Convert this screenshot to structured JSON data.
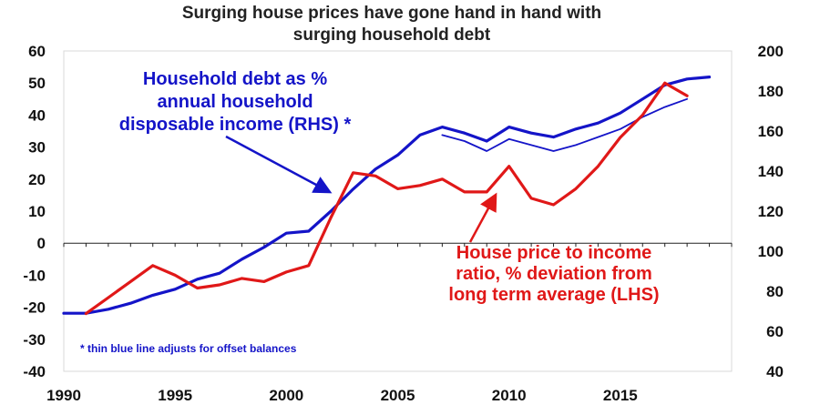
{
  "chart_data": {
    "type": "line",
    "title_lines": [
      "Surging house prices have gone hand in hand with",
      "surging household debt"
    ],
    "x_ticks": [
      "1990",
      "1995",
      "2000",
      "2005",
      "2010",
      "2015"
    ],
    "x_tick_values": [
      1990,
      1995,
      2000,
      2005,
      2010,
      2015
    ],
    "xlim": [
      1990,
      2020
    ],
    "left_axis": {
      "ticks": [
        "60",
        "50",
        "40",
        "30",
        "20",
        "10",
        "0",
        "-10",
        "-20",
        "-30",
        "-40"
      ],
      "ylim": [
        -40,
        60
      ]
    },
    "right_axis": {
      "ticks": [
        "200",
        "180",
        "160",
        "140",
        "120",
        "100",
        "80",
        "60",
        "40"
      ],
      "ylim": [
        40,
        200
      ]
    },
    "grid": false,
    "zero_line": 0,
    "series": [
      {
        "name": "Household debt as % annual household disposable income (RHS) *",
        "axis": "right",
        "color": "#1414c8",
        "weight": "thick",
        "x": [
          1990,
          1991,
          1992,
          1993,
          1994,
          1995,
          1996,
          1997,
          1998,
          1999,
          2000,
          2001,
          2002,
          2003,
          2004,
          2005,
          2006,
          2007,
          2008,
          2009,
          2010,
          2011,
          2012,
          2013,
          2014,
          2015,
          2016,
          2017,
          2018,
          2019
        ],
        "values": [
          69,
          69,
          71,
          74,
          78,
          81,
          86,
          89,
          96,
          102,
          109,
          110,
          120,
          131,
          141,
          148,
          158,
          162,
          159,
          155,
          162,
          159,
          157,
          161,
          164,
          169,
          176,
          183,
          186,
          187
        ]
      },
      {
        "name": "thin blue line (offset-adjusted debt, RHS)",
        "axis": "right",
        "color": "#1414c8",
        "weight": "thin",
        "x": [
          2007,
          2008,
          2009,
          2010,
          2011,
          2012,
          2013,
          2014,
          2015,
          2016,
          2017,
          2018
        ],
        "values": [
          158,
          155,
          150,
          156,
          153,
          150,
          153,
          157,
          161,
          167,
          172,
          176
        ]
      },
      {
        "name": "House price to income ratio, % deviation from long term average (LHS)",
        "axis": "left",
        "color": "#e01818",
        "weight": "thick",
        "x": [
          1991,
          1992,
          1993,
          1994,
          1995,
          1996,
          1997,
          1998,
          1999,
          2000,
          2001,
          2002,
          2003,
          2004,
          2005,
          2006,
          2007,
          2008,
          2009,
          2010,
          2011,
          2012,
          2013,
          2014,
          2015,
          2016,
          2017,
          2018
        ],
        "values": [
          -22,
          -17,
          -12,
          -7,
          -10,
          -14,
          -13,
          -11,
          -12,
          -9,
          -7,
          8,
          22,
          21,
          17,
          18,
          20,
          16,
          16,
          24,
          14,
          12,
          17,
          24,
          33,
          40,
          50,
          46
        ]
      }
    ],
    "annotations": {
      "blue_label": [
        "Household debt as %",
        "annual household",
        "disposable income (RHS) *"
      ],
      "red_label": [
        "House price to income",
        "ratio, % deviation from",
        "long term average (LHS)"
      ],
      "footnote": "* thin blue line adjusts for offset balances"
    }
  }
}
